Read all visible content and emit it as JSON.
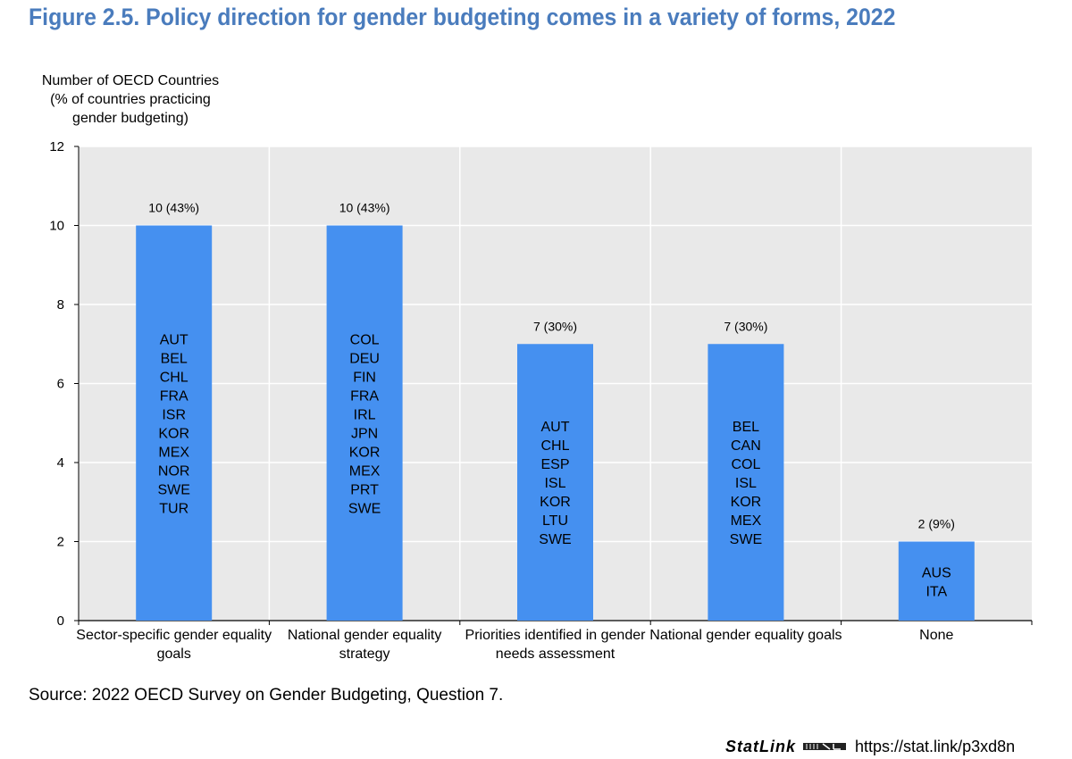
{
  "title": "Figure 2.5. Policy direction for gender budgeting comes in a variety of forms, 2022",
  "ylabel_lines": [
    "Number of OECD Countries",
    "(% of countries practicing",
    "gender budgeting)"
  ],
  "source": "Source: 2022 OECD Survey on Gender Budgeting, Question 7.",
  "statlink": {
    "brand": "StatLink",
    "url": "https://stat.link/p3xd8n"
  },
  "colors": {
    "bar": "#4590f0",
    "title": "#4a7cbd",
    "panel": "#e9e9e9",
    "grid": "#ffffff"
  },
  "chart_data": {
    "type": "bar",
    "title": "Figure 2.5. Policy direction for gender budgeting comes in a variety of forms, 2022",
    "xlabel": "",
    "ylabel": "Number of OECD Countries (% of countries practicing gender budgeting)",
    "ylim": [
      0,
      12
    ],
    "yticks": [
      0,
      2,
      4,
      6,
      8,
      10,
      12
    ],
    "grid": true,
    "categories": [
      [
        "Sector-specific gender equality",
        "goals"
      ],
      [
        "National gender equality",
        "strategy"
      ],
      [
        "Priorities identified in gender",
        "needs assessment"
      ],
      [
        "National gender equality goals"
      ],
      [
        "None"
      ]
    ],
    "values": [
      10,
      10,
      7,
      7,
      2
    ],
    "data_labels": [
      "10 (43%)",
      "10 (43%)",
      "7 (30%)",
      "7 (30%)",
      "2 (9%)"
    ],
    "countries": [
      [
        "AUT",
        "BEL",
        "CHL",
        "FRA",
        "ISR",
        "KOR",
        "MEX",
        "NOR",
        "SWE",
        "TUR"
      ],
      [
        "COL",
        "DEU",
        "FIN",
        "FRA",
        "IRL",
        "JPN",
        "KOR",
        "MEX",
        "PRT",
        "SWE"
      ],
      [
        "AUT",
        "CHL",
        "ESP",
        "ISL",
        "KOR",
        "LTU",
        "SWE"
      ],
      [
        "BEL",
        "CAN",
        "COL",
        "ISL",
        "KOR",
        "MEX",
        "SWE"
      ],
      [
        "AUS",
        "ITA"
      ]
    ]
  }
}
